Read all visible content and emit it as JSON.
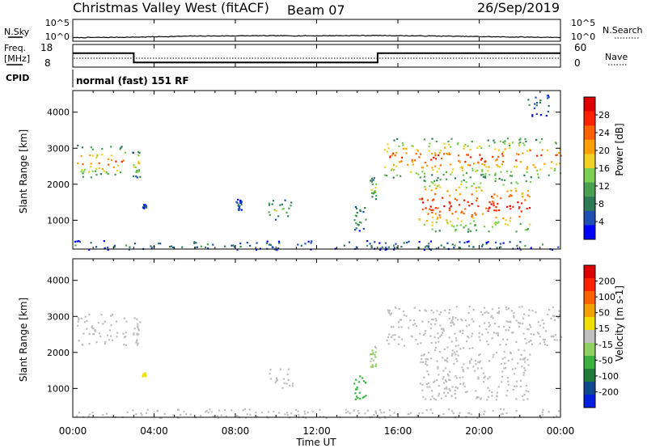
{
  "header": {
    "title": "Christmas Valley West (fitACF)",
    "beam": "Beam 07",
    "date": "26/Sep/2019"
  },
  "noise_panel": {
    "left_label": "N.Sky",
    "right_label": "N.Search",
    "left_ticks": [
      "10^5",
      "10^0"
    ],
    "right_ticks": [
      "10^5",
      "10^0"
    ]
  },
  "freq_panel": {
    "left_label_1": "Freq.",
    "left_label_2": "[MHz]",
    "right_label": "Nave",
    "left_ticks": [
      "18",
      "8"
    ],
    "right_ticks": [
      "60",
      "0"
    ],
    "cpid_label": "CPID",
    "cpid_text": "normal (fast) 151 RF",
    "freq_steps": [
      {
        "start_h": 0.0,
        "end_h": 3.0,
        "mhz": 16.5
      },
      {
        "start_h": 3.0,
        "end_h": 15.0,
        "mhz": 10.5
      },
      {
        "start_h": 15.0,
        "end_h": 24.0,
        "mhz": 16.5
      }
    ],
    "nave_level": 20
  },
  "x_axis": {
    "label": "Time UT",
    "ticks": [
      "00:00",
      "04:00",
      "08:00",
      "12:00",
      "16:00",
      "20:00",
      "00:00"
    ],
    "range_h": [
      0,
      24
    ]
  },
  "power_panel": {
    "ylabel": "Slant Range [km]",
    "yticks": [
      "4000",
      "3000",
      "2000",
      "1000"
    ],
    "colorbar_label": "Power [dB]",
    "colorbar_ticks": [
      "28",
      "24",
      "20",
      "16",
      "12",
      "8",
      "4"
    ]
  },
  "velocity_panel": {
    "ylabel": "Slant Range [km]",
    "yticks": [
      "4000",
      "3000",
      "2000",
      "1000"
    ],
    "colorbar_label": "Velocity [m s-1]",
    "colorbar_ticks": [
      "200",
      "100",
      "50",
      "15",
      "-15",
      "-50",
      "-100",
      "-200"
    ]
  },
  "colors": {
    "power_scale": [
      "#0000ff",
      "#1f4fb0",
      "#2d7a55",
      "#4aa050",
      "#7ad050",
      "#f0d020",
      "#ffa000",
      "#ff6000",
      "#ff2000",
      "#e00000"
    ],
    "velocity_scale": [
      "#0020e0",
      "#104890",
      "#1f7a3a",
      "#3ab040",
      "#90d060",
      "#c0c0c0",
      "#f0e000",
      "#f0a000",
      "#ff6000",
      "#ff2000",
      "#dd0000"
    ],
    "ground_scatter": "#bdbdbd"
  },
  "chart_data": [
    {
      "type": "line",
      "name": "N.Sky",
      "x": [
        0,
        3,
        6,
        9,
        12,
        15,
        18,
        21,
        24
      ],
      "y_log10": [
        0.7,
        0.9,
        1.3,
        1.4,
        1.4,
        1.5,
        1.3,
        1.0,
        0.8
      ]
    },
    {
      "type": "line",
      "name": "Freq.",
      "x": [
        0,
        3,
        3,
        15,
        15,
        24
      ],
      "y": [
        16.5,
        16.5,
        10.5,
        10.5,
        16.5,
        16.5
      ]
    },
    {
      "type": "heatmap",
      "name": "Power [dB]",
      "xlabel": "Time UT",
      "ylabel": "Slant Range [km]",
      "xlim": [
        0,
        24
      ],
      "ylim": [
        200,
        4600
      ],
      "zlim": [
        0,
        32
      ],
      "regions": [
        {
          "t_start": 0.2,
          "t_end": 2.6,
          "r_start": 2200,
          "r_end": 3100,
          "peak_db": 28
        },
        {
          "t_start": 2.9,
          "t_end": 3.3,
          "r_start": 2200,
          "r_end": 3000,
          "peak_db": 22
        },
        {
          "t_start": 3.4,
          "t_end": 3.6,
          "r_start": 1350,
          "r_end": 1450,
          "peak_db": 10
        },
        {
          "t_start": 8.0,
          "t_end": 8.3,
          "r_start": 1300,
          "r_end": 1600,
          "peak_db": 10
        },
        {
          "t_start": 9.6,
          "t_end": 10.8,
          "r_start": 1000,
          "r_end": 1600,
          "peak_db": 18
        },
        {
          "t_start": 13.8,
          "t_end": 14.4,
          "r_start": 700,
          "r_end": 1400,
          "peak_db": 16
        },
        {
          "t_start": 14.6,
          "t_end": 14.9,
          "r_start": 1600,
          "r_end": 2200,
          "peak_db": 20
        },
        {
          "t_start": 15.3,
          "t_end": 24.0,
          "r_start": 2200,
          "r_end": 3300,
          "peak_db": 30
        },
        {
          "t_start": 17.0,
          "t_end": 22.5,
          "r_start": 700,
          "r_end": 2200,
          "peak_db": 32
        },
        {
          "t_start": 22.3,
          "t_end": 23.5,
          "r_start": 3900,
          "r_end": 4500,
          "peak_db": 12
        },
        {
          "t_start": 0.0,
          "t_end": 24.0,
          "r_start": 200,
          "r_end": 450,
          "peak_db": 12
        }
      ]
    },
    {
      "type": "heatmap",
      "name": "Velocity [m s-1]",
      "xlabel": "Time UT",
      "ylabel": "Slant Range [km]",
      "xlim": [
        0,
        24
      ],
      "ylim": [
        200,
        4600
      ],
      "zlim": [
        -200,
        200
      ],
      "regions": [
        {
          "t_start": 0.2,
          "t_end": 2.6,
          "r_start": 2200,
          "r_end": 3100,
          "v": 0
        },
        {
          "t_start": 2.9,
          "t_end": 3.3,
          "r_start": 2200,
          "r_end": 3000,
          "v": 0
        },
        {
          "t_start": 3.4,
          "t_end": 3.6,
          "r_start": 1350,
          "r_end": 1450,
          "v": -60
        },
        {
          "t_start": 9.6,
          "t_end": 10.8,
          "r_start": 1000,
          "r_end": 1600,
          "v": 0
        },
        {
          "t_start": 13.8,
          "t_end": 14.4,
          "r_start": 700,
          "r_end": 1400,
          "v": 60
        },
        {
          "t_start": 14.6,
          "t_end": 14.9,
          "r_start": 1600,
          "r_end": 2200,
          "v": 20
        },
        {
          "t_start": 15.3,
          "t_end": 24.0,
          "r_start": 2200,
          "r_end": 3300,
          "v": 0
        },
        {
          "t_start": 17.0,
          "t_end": 22.5,
          "r_start": 700,
          "r_end": 2200,
          "v": 0
        },
        {
          "t_start": 0.0,
          "t_end": 24.0,
          "r_start": 200,
          "r_end": 450,
          "v": -20
        }
      ]
    }
  ]
}
